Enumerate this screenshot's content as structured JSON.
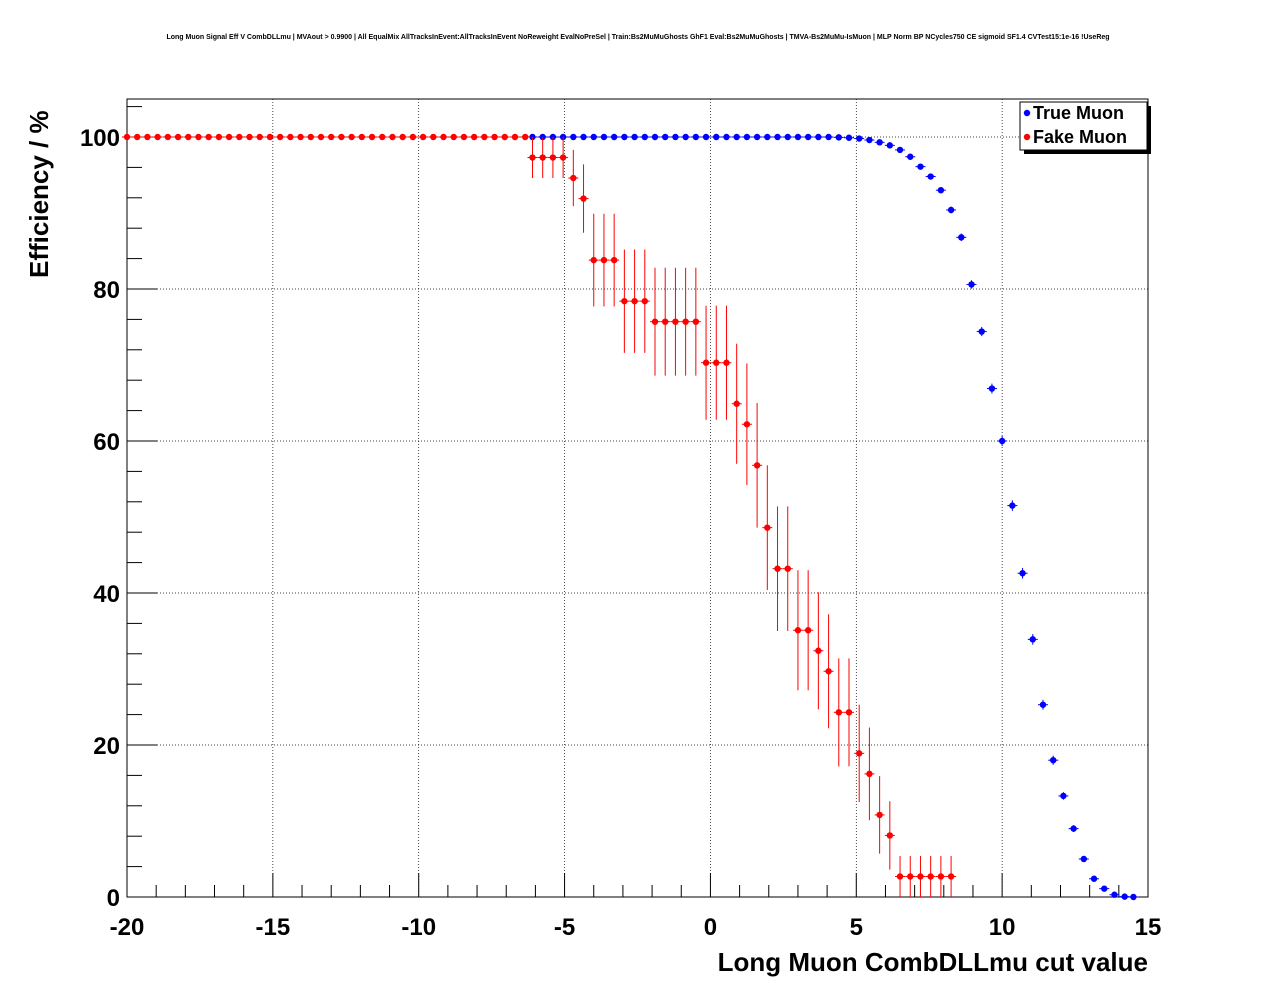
{
  "chart_data": {
    "type": "scatter",
    "title": "Long Muon Signal Eff V CombDLLmu | MVAout > 0.9900 | All EqualMix AllTracksInEvent:AllTracksInEvent NoReweight EvalNoPreSel | Train:Bs2MuMuGhosts GhF1 Eval:Bs2MuMuGhosts | TMVA-Bs2MuMu-IsMuon | MLP Norm BP NCycles750 CE sigmoid SF1.4 CVTest15:1e-16 !UseReg",
    "xlabel": "Long Muon CombDLLmu cut value",
    "ylabel": "Efficiency / %",
    "xlim": [
      -20,
      15
    ],
    "ylim": [
      0,
      105
    ],
    "xticks": [
      -20,
      -15,
      -10,
      -5,
      0,
      5,
      10,
      15
    ],
    "yticks": [
      0,
      20,
      40,
      60,
      80,
      100
    ],
    "grid": true,
    "legend_position": "top-right",
    "series": [
      {
        "name": "True Muon",
        "color": "#0000ff",
        "x": [
          -6.1,
          -5.75,
          -5.4,
          -5.05,
          -4.7,
          -4.35,
          -4.0,
          -3.65,
          -3.3,
          -2.95,
          -2.6,
          -2.25,
          -1.9,
          -1.55,
          -1.2,
          -0.85,
          -0.5,
          -0.15,
          0.2,
          0.55,
          0.9,
          1.25,
          1.6,
          1.95,
          2.3,
          2.65,
          3.0,
          3.35,
          3.7,
          4.05,
          4.4,
          4.75,
          5.1,
          5.45,
          5.8,
          6.15,
          6.5,
          6.85,
          7.2,
          7.55,
          7.9,
          8.25,
          8.6,
          8.95,
          9.3,
          9.65,
          10.0,
          10.35,
          10.7,
          11.05,
          11.4,
          11.75,
          12.1,
          12.45,
          12.8,
          13.15,
          13.5,
          13.85,
          14.2,
          14.5
        ],
        "y": [
          100,
          100,
          100,
          100,
          100,
          100,
          100,
          100,
          100,
          100,
          100,
          100,
          100,
          100,
          100,
          100,
          100,
          100,
          100,
          100,
          100,
          100,
          100,
          100,
          100,
          100,
          100,
          100,
          100,
          100,
          99.95,
          99.9,
          99.8,
          99.6,
          99.3,
          98.9,
          98.3,
          97.4,
          96.1,
          94.8,
          93.0,
          90.4,
          86.8,
          80.6,
          74.4,
          66.9,
          60.0,
          51.5,
          42.6,
          33.9,
          25.3,
          18.0,
          13.3,
          9.0,
          5.0,
          2.4,
          1.1,
          0.3,
          0.05,
          0.0
        ],
        "err": [
          0.05,
          0.05,
          0.05,
          0.05,
          0.05,
          0.05,
          0.05,
          0.05,
          0.05,
          0.05,
          0.05,
          0.05,
          0.05,
          0.05,
          0.05,
          0.05,
          0.05,
          0.05,
          0.05,
          0.05,
          0.05,
          0.05,
          0.05,
          0.05,
          0.05,
          0.05,
          0.05,
          0.05,
          0.05,
          0.05,
          0.1,
          0.1,
          0.1,
          0.15,
          0.2,
          0.2,
          0.25,
          0.3,
          0.3,
          0.35,
          0.4,
          0.45,
          0.5,
          0.55,
          0.6,
          0.65,
          0.65,
          0.7,
          0.7,
          0.7,
          0.65,
          0.6,
          0.5,
          0.45,
          0.35,
          0.25,
          0.15,
          0.1,
          0.05,
          0.05
        ]
      },
      {
        "name": "Fake Muon",
        "color": "#ff0000",
        "x": [
          -20.0,
          -19.65,
          -19.3,
          -18.95,
          -18.6,
          -18.25,
          -17.9,
          -17.55,
          -17.2,
          -16.85,
          -16.5,
          -16.15,
          -15.8,
          -15.45,
          -15.1,
          -14.75,
          -14.4,
          -14.05,
          -13.7,
          -13.35,
          -13.0,
          -12.65,
          -12.3,
          -11.95,
          -11.6,
          -11.25,
          -10.9,
          -10.55,
          -10.2,
          -9.85,
          -9.5,
          -9.15,
          -8.8,
          -8.45,
          -8.1,
          -7.75,
          -7.4,
          -7.05,
          -6.7,
          -6.35,
          -6.1,
          -5.75,
          -5.4,
          -5.05,
          -4.7,
          -4.35,
          -4.0,
          -3.65,
          -3.3,
          -2.95,
          -2.6,
          -2.25,
          -1.9,
          -1.55,
          -1.2,
          -0.85,
          -0.5,
          -0.15,
          0.2,
          0.55,
          0.9,
          1.25,
          1.6,
          1.95,
          2.3,
          2.65,
          3.0,
          3.35,
          3.7,
          4.05,
          4.4,
          4.75,
          5.1,
          5.45,
          5.8,
          6.15,
          6.5,
          6.85,
          7.2,
          7.55,
          7.9,
          8.25
        ],
        "y": [
          100,
          100,
          100,
          100,
          100,
          100,
          100,
          100,
          100,
          100,
          100,
          100,
          100,
          100,
          100,
          100,
          100,
          100,
          100,
          100,
          100,
          100,
          100,
          100,
          100,
          100,
          100,
          100,
          100,
          100,
          100,
          100,
          100,
          100,
          100,
          100,
          100,
          100,
          100,
          100,
          97.3,
          97.3,
          97.3,
          97.3,
          94.6,
          91.9,
          83.8,
          83.8,
          83.8,
          78.4,
          78.4,
          78.4,
          75.7,
          75.7,
          75.7,
          75.7,
          75.7,
          70.3,
          70.3,
          70.3,
          64.9,
          62.2,
          56.8,
          48.6,
          43.2,
          43.2,
          35.1,
          35.1,
          32.4,
          29.7,
          24.3,
          24.3,
          18.9,
          16.2,
          10.8,
          8.1,
          2.7,
          2.7,
          2.7,
          2.7,
          2.7,
          2.7
        ],
        "err": [
          0.05,
          0.05,
          0.05,
          0.05,
          0.05,
          0.05,
          0.05,
          0.05,
          0.05,
          0.05,
          0.05,
          0.05,
          0.05,
          0.05,
          0.05,
          0.05,
          0.05,
          0.05,
          0.05,
          0.05,
          0.05,
          0.05,
          0.05,
          0.05,
          0.05,
          0.05,
          0.05,
          0.05,
          0.05,
          0.05,
          0.05,
          0.05,
          0.05,
          0.05,
          0.05,
          0.05,
          0.05,
          0.05,
          0.05,
          0.05,
          2.7,
          2.7,
          2.7,
          2.7,
          3.7,
          4.5,
          6.1,
          6.1,
          6.1,
          6.8,
          6.8,
          6.8,
          7.1,
          7.1,
          7.1,
          7.1,
          7.1,
          7.5,
          7.5,
          7.5,
          7.9,
          8.0,
          8.2,
          8.2,
          8.2,
          8.2,
          7.9,
          7.9,
          7.7,
          7.5,
          7.1,
          7.1,
          6.4,
          6.1,
          5.1,
          4.5,
          2.7,
          2.7,
          2.7,
          2.7,
          2.7,
          2.7
        ]
      }
    ]
  }
}
